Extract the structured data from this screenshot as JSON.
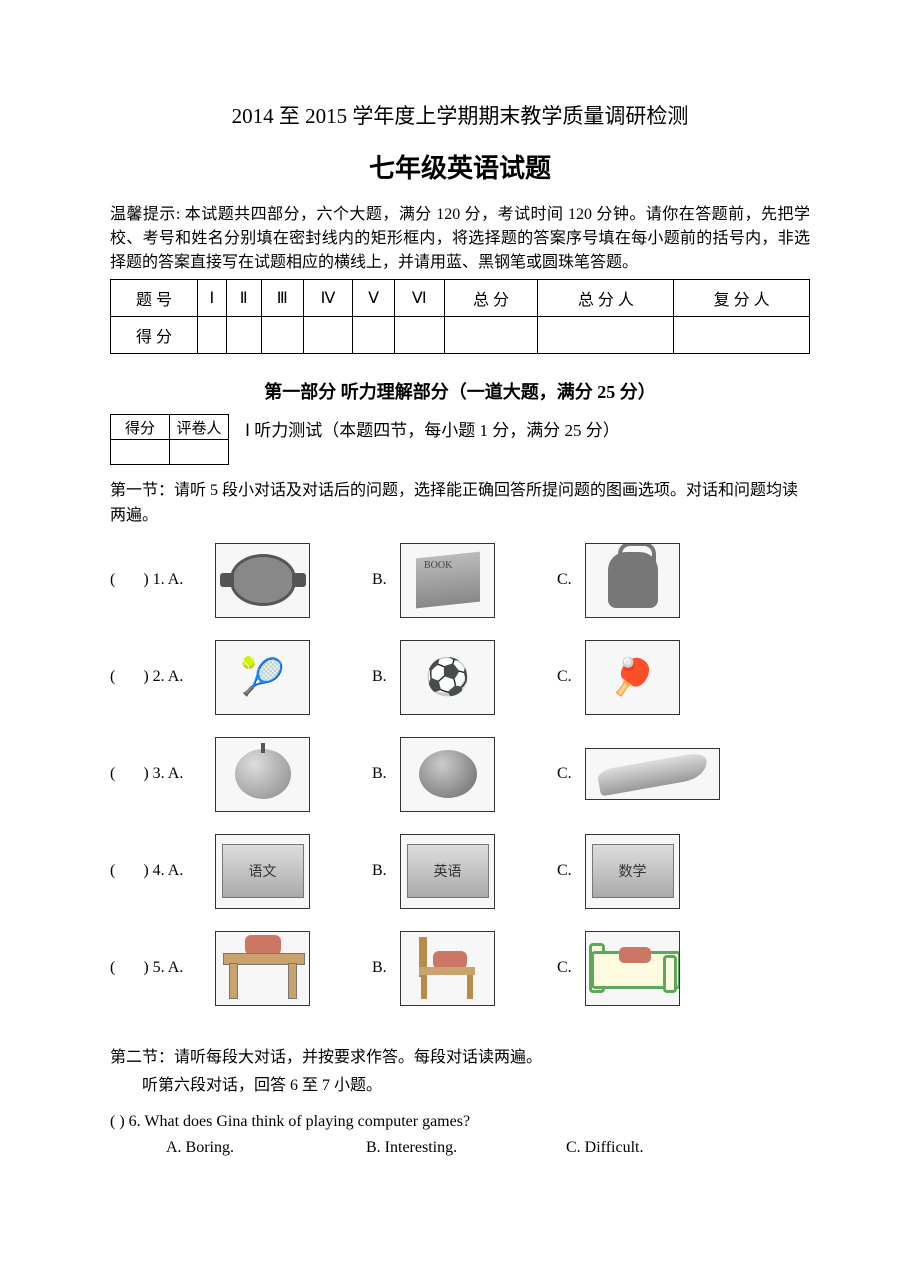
{
  "header": {
    "title_line_1": "2014 至 2015 学年度上学期期末教学质量调研检测",
    "title_line_2": "七年级英语试题",
    "instructions": "温馨提示: 本试题共四部分，六个大题，满分 120 分，考试时间 120 分钟。请你在答题前，先把学校、考号和姓名分别填在密封线内的矩形框内，将选择题的答案序号填在每小题前的括号内，非选择题的答案直接写在试题相应的横线上，并请用蓝、黑钢笔或圆珠笔答题。"
  },
  "score_table": {
    "row1_label": "题  号",
    "row2_label": "得  分",
    "cols": [
      "Ⅰ",
      "Ⅱ",
      "Ⅲ",
      "Ⅳ",
      "Ⅴ",
      "Ⅵ",
      "总  分",
      "总 分 人",
      "复 分 人"
    ]
  },
  "part1": {
    "section_title": "第一部分   听力理解部分（一道大题，满分 25 分）",
    "grader_table": {
      "cell1": "得分",
      "cell2": "评卷人"
    },
    "sub_instruction": "Ⅰ  听力测试（本题四节，每小题 1 分，满分 25 分）",
    "sec1_intro": "第一节：请听 5 段小对话及对话后的问题，选择能正确回答所提问题的图画选项。对话和问题均读两遍。",
    "pic_questions": [
      {
        "num": "(       ) 1. A.",
        "labelB": "B.",
        "labelC": "C.",
        "imgA_label": "",
        "imgB_label": "BOOK",
        "imgC_label": ""
      },
      {
        "num": "(       ) 2. A.",
        "labelB": "B.",
        "labelC": "C."
      },
      {
        "num": "(       ) 3. A.",
        "labelB": "B.",
        "labelC": "C."
      },
      {
        "num": "(       ) 4. A.",
        "labelB": "B.",
        "labelC": "C.",
        "imgA_label": "语文",
        "imgB_label": "英语",
        "imgC_label": "数学"
      },
      {
        "num": "(       ) 5. A.",
        "labelB": "B.",
        "labelC": "C."
      }
    ],
    "sec2_intro_l1": "第二节：请听每段大对话，并按要求作答。每段对话读两遍。",
    "sec2_intro_l2": "听第六段对话，回答 6 至 7 小题。",
    "q6": {
      "stem": "(        ) 6. What does Gina think of playing computer games?",
      "optA": "A. Boring.",
      "optB": "B. Interesting.",
      "optC": "C. Difficult."
    }
  }
}
